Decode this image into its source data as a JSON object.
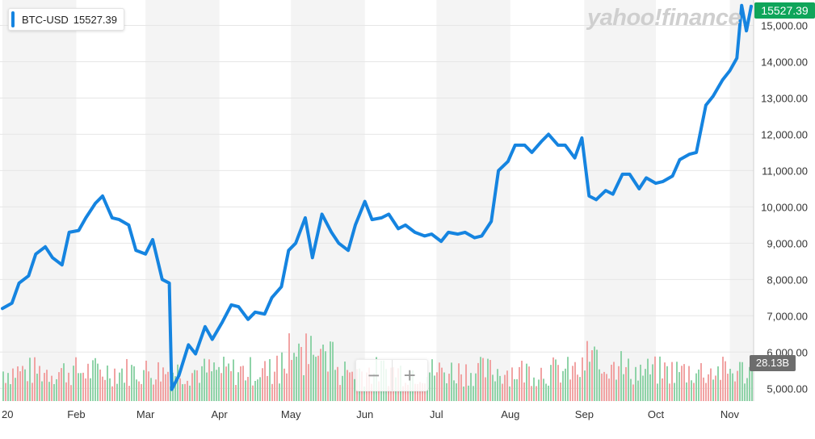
{
  "legend": {
    "symbol": "BTC-USD",
    "price": "15527.39",
    "color": "#1584e0"
  },
  "price_tag": "15527.39",
  "volume_tag": "28.13B",
  "watermark": "yahoo!finance",
  "zoom": {
    "minus": "−",
    "plus": "+"
  },
  "colors": {
    "line": "#1584e0",
    "price_tag": "#0fa55a",
    "vol_up": "#8fd3a8",
    "vol_down": "#f1a3a3",
    "band": "#f4f4f4"
  },
  "chart_data": {
    "type": "line",
    "title": "",
    "xlabel": "",
    "ylabel": "",
    "series": [
      {
        "name": "BTC-USD",
        "x": [
          "2020-01-01",
          "2020-01-05",
          "2020-01-08",
          "2020-01-12",
          "2020-01-15",
          "2020-01-19",
          "2020-01-22",
          "2020-01-26",
          "2020-01-29",
          "2020-02-02",
          "2020-02-05",
          "2020-02-09",
          "2020-02-12",
          "2020-02-16",
          "2020-02-19",
          "2020-02-23",
          "2020-02-26",
          "2020-03-01",
          "2020-03-04",
          "2020-03-08",
          "2020-03-11",
          "2020-03-12",
          "2020-03-15",
          "2020-03-19",
          "2020-03-22",
          "2020-03-26",
          "2020-03-29",
          "2020-04-02",
          "2020-04-06",
          "2020-04-09",
          "2020-04-13",
          "2020-04-16",
          "2020-04-20",
          "2020-04-23",
          "2020-04-27",
          "2020-04-30",
          "2020-05-03",
          "2020-05-07",
          "2020-05-10",
          "2020-05-14",
          "2020-05-18",
          "2020-05-21",
          "2020-05-25",
          "2020-05-28",
          "2020-06-01",
          "2020-06-04",
          "2020-06-08",
          "2020-06-11",
          "2020-06-15",
          "2020-06-18",
          "2020-06-22",
          "2020-06-26",
          "2020-06-29",
          "2020-07-03",
          "2020-07-06",
          "2020-07-10",
          "2020-07-13",
          "2020-07-17",
          "2020-07-20",
          "2020-07-24",
          "2020-07-27",
          "2020-07-31",
          "2020-08-03",
          "2020-08-07",
          "2020-08-10",
          "2020-08-14",
          "2020-08-17",
          "2020-08-21",
          "2020-08-24",
          "2020-08-28",
          "2020-08-31",
          "2020-09-03",
          "2020-09-06",
          "2020-09-10",
          "2020-09-13",
          "2020-09-17",
          "2020-09-20",
          "2020-09-24",
          "2020-09-27",
          "2020-10-01",
          "2020-10-04",
          "2020-10-08",
          "2020-10-11",
          "2020-10-15",
          "2020-10-18",
          "2020-10-22",
          "2020-10-25",
          "2020-10-29",
          "2020-11-01",
          "2020-11-04",
          "2020-11-06",
          "2020-11-08",
          "2020-11-10"
        ],
        "y": [
          7200,
          7350,
          7900,
          8100,
          8700,
          8900,
          8600,
          8400,
          9300,
          9350,
          9700,
          10100,
          10300,
          9700,
          9650,
          9500,
          8800,
          8700,
          9100,
          8000,
          7900,
          4970,
          5350,
          6200,
          5950,
          6700,
          6350,
          6800,
          7300,
          7250,
          6900,
          7100,
          7050,
          7500,
          7800,
          8800,
          9000,
          9700,
          8600,
          9800,
          9300,
          9000,
          8800,
          9500,
          10150,
          9650,
          9700,
          9800,
          9400,
          9500,
          9300,
          9200,
          9250,
          9050,
          9300,
          9250,
          9300,
          9150,
          9200,
          9600,
          11000,
          11250,
          11700,
          11700,
          11500,
          11800,
          12000,
          11700,
          11700,
          11350,
          11900,
          10300,
          10200,
          10450,
          10350,
          10900,
          10900,
          10500,
          10800,
          10650,
          10700,
          10850,
          11300,
          11450,
          11500,
          12800,
          13050,
          13500,
          13750,
          14100,
          15550,
          14850,
          15527
        ]
      }
    ],
    "volume": {
      "unit": "B",
      "latest": 28.13
    },
    "x_tick_labels": [
      "20",
      "Feb",
      "Mar",
      "Apr",
      "May",
      "Jun",
      "Jul",
      "Aug",
      "Sep",
      "Oct",
      "Nov"
    ],
    "y_tick_labels": [
      "5,000.00",
      "6,000.00",
      "7,000.00",
      "8,000.00",
      "9,000.00",
      "10,000.00",
      "11,000.00",
      "12,000.00",
      "13,000.00",
      "14,000.00",
      "15,000.00"
    ],
    "y_ticks": [
      5000,
      6000,
      7000,
      8000,
      9000,
      10000,
      11000,
      12000,
      13000,
      14000,
      15000
    ],
    "ylim": [
      4650,
      15700
    ],
    "xlim": [
      "2019-12-31",
      "2020-11-11"
    ],
    "grid": true,
    "legend_position": "top-left"
  }
}
